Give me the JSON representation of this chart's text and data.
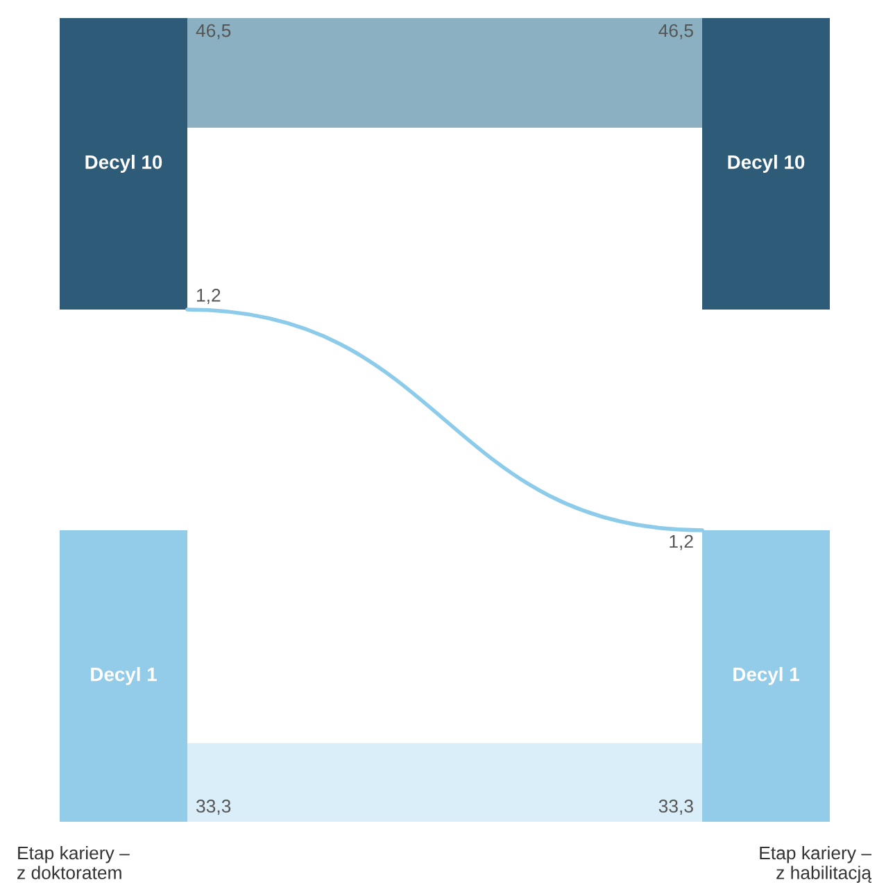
{
  "chart_data": {
    "type": "other",
    "categories": [
      "Decyl 10",
      "Decyl 1"
    ],
    "colors": [
      "#2e5b77",
      "#93cce8"
    ],
    "series": [
      {
        "values": [
          46.5,
          1.2
        ],
        "value_labels": [
          "46,5",
          "1,2"
        ],
        "colors": [
          "#8ab0c1",
          "#8ccbe9"
        ]
      },
      {
        "values": [
          null,
          33.3
        ],
        "value_labels": [
          null,
          "33,3"
        ],
        "colors": [
          null,
          "#d9eef8"
        ]
      }
    ],
    "annotations": [
      "Etap kariery –\nz doktoratem",
      "Etap kariery –\nz habilitacją"
    ]
  }
}
